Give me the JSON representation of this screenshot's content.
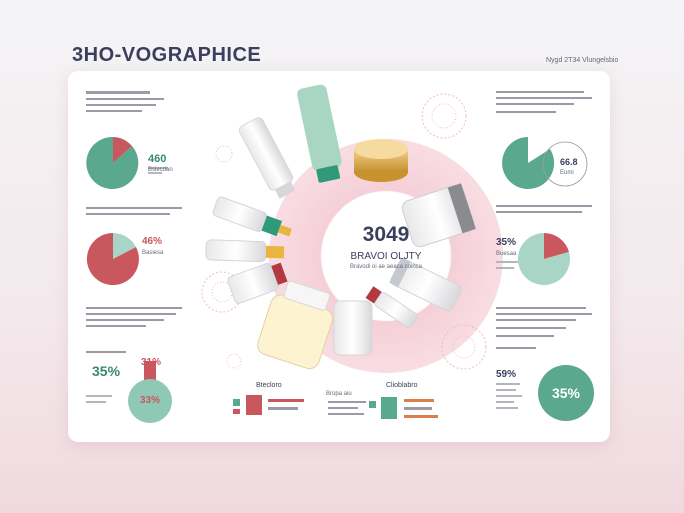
{
  "header": {
    "title": "3HO-VOGRAPHICE",
    "subtitle": "Nygd 2T34 Vlungelsbio"
  },
  "center": {
    "value": "3049",
    "label": "BRAVOI OLJTY",
    "caption": "Bravodi oi ae aeaca coinca"
  },
  "left_panels": [
    {
      "pct": "460",
      "sub": "Bsiecdan"
    },
    {
      "pct": "46%",
      "sub": "Basiesa"
    },
    {
      "pct": "35%",
      "pct2": "31%",
      "badge": "33%"
    }
  ],
  "right_panels": [
    {
      "pct": "66.8",
      "sub": "Eumi"
    },
    {
      "pct": "35%",
      "sub": "Buesaa"
    },
    {
      "pct": "59%",
      "badge": "35%"
    }
  ],
  "bottom": {
    "label_left": "Btecloro",
    "label_right": "Clioblabro",
    "mid_text": "Bropa aiu"
  },
  "colors": {
    "teal": "#5a9e8c",
    "rose": "#c9575e",
    "pink": "#f3c7d1",
    "light_teal": "#a8d5c6"
  }
}
